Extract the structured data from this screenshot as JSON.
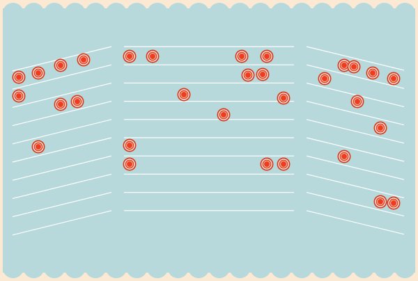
{
  "game": {
    "background_color": "#fbe9d4",
    "board_color": "#b8d9dc",
    "line_color": "#ffffff",
    "peg": {
      "fill": "#ee3d1e",
      "ring": "#f7efe7",
      "outline": "#d63a1d"
    }
  },
  "panels": {
    "left": {
      "label": "left-panel",
      "rows": 10,
      "pegs": [
        {
          "row": 0,
          "col": 0
        },
        {
          "row": 0,
          "col": 1
        },
        {
          "row": 0,
          "col": 2
        },
        {
          "row": 0,
          "col": 3
        },
        {
          "row": 1,
          "col": 0
        },
        {
          "row": 1,
          "col": 2
        },
        {
          "row": 1,
          "col": 3
        },
        {
          "row": 3,
          "col": 1
        }
      ]
    },
    "center": {
      "label": "center-panel",
      "rows": 10,
      "pegs": [
        {
          "row": 0,
          "col": 0
        },
        {
          "row": 0,
          "col": 1
        },
        {
          "row": 0,
          "col": 6
        },
        {
          "row": 0,
          "col": 7
        },
        {
          "row": 1,
          "col": 6
        },
        {
          "row": 1,
          "col": 7
        },
        {
          "row": 2,
          "col": 3
        },
        {
          "row": 2,
          "col": 8
        },
        {
          "row": 3,
          "col": 5
        },
        {
          "row": 5,
          "col": 0
        },
        {
          "row": 6,
          "col": 0
        },
        {
          "row": 6,
          "col": 7
        },
        {
          "row": 6,
          "col": 8
        }
      ]
    },
    "right": {
      "label": "right-panel",
      "rows": 10,
      "pegs": [
        {
          "row": 0,
          "col": 0
        },
        {
          "row": 0,
          "col": 1
        },
        {
          "row": 0,
          "col": 2
        },
        {
          "row": 0,
          "col": 3
        },
        {
          "row": 0,
          "col": 4
        },
        {
          "row": 2,
          "col": 2
        },
        {
          "row": 3,
          "col": 3
        },
        {
          "row": 5,
          "col": 2
        },
        {
          "row": 7,
          "col": 3
        },
        {
          "row": 7,
          "col": 4
        }
      ]
    }
  }
}
